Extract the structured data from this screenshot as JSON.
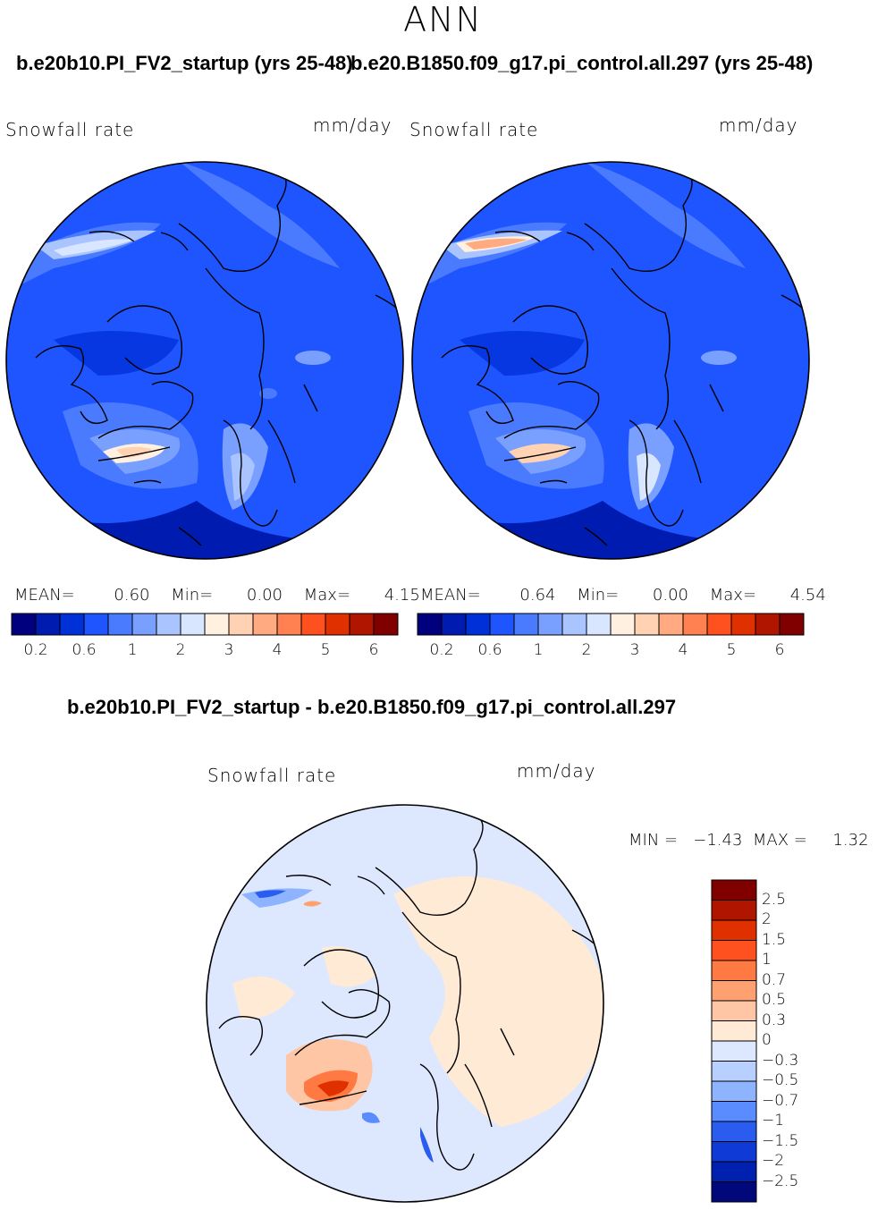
{
  "season": "ANN",
  "panels": {
    "left": {
      "title": "b.e20b10.PI_FV2_startup (yrs 25-48)",
      "variable": "Snowfall rate",
      "units": "mm/day",
      "stats": {
        "mean_label": "MEAN=",
        "mean": "0.60",
        "min_label": "Min=",
        "min": "0.00",
        "max_label": "Max=",
        "max": "4.15"
      }
    },
    "right": {
      "title": "b.e20.B1850.f09_g17.pi_control.all.297 (yrs 25-48)",
      "variable": "Snowfall rate",
      "units": "mm/day",
      "stats": {
        "mean_label": "MEAN=",
        "mean": "0.64",
        "min_label": "Min=",
        "min": "0.00",
        "max_label": "Max=",
        "max": "4.54"
      }
    },
    "diff": {
      "title": "b.e20b10.PI_FV2_startup - b.e20.B1850.f09_g17.pi_control.all.297",
      "variable": "Snowfall rate",
      "units": "mm/day",
      "minmax": "MIN =   −1.43  MAX =     1.32"
    }
  },
  "colorbar_top": {
    "colors": [
      "#00007f",
      "#001bb0",
      "#0030d8",
      "#1f55ff",
      "#4a7bff",
      "#7aa0ff",
      "#aac4ff",
      "#d8e6ff",
      "#fff0e0",
      "#ffd2b4",
      "#ffaa80",
      "#ff8050",
      "#ff5020",
      "#e03000",
      "#b01500",
      "#800000"
    ],
    "labels": [
      "0.2",
      "0.6",
      "1",
      "2",
      "3",
      "4",
      "5",
      "6"
    ]
  },
  "colorbar_diff": {
    "colors": [
      "#800000",
      "#b01500",
      "#e03000",
      "#ff5020",
      "#ff7a42",
      "#ffa070",
      "#ffc6a6",
      "#ffead6",
      "#dde8ff",
      "#b8d0ff",
      "#8eb4ff",
      "#5a8cff",
      "#2a5cf0",
      "#0f3ad6",
      "#0020b0",
      "#00087a"
    ],
    "labels": [
      "2.5",
      "2",
      "1.5",
      "1",
      "0.7",
      "0.5",
      "0.3",
      "0",
      "−0.3",
      "−0.5",
      "−0.7",
      "−1",
      "−1.5",
      "−2",
      "−2.5"
    ]
  }
}
